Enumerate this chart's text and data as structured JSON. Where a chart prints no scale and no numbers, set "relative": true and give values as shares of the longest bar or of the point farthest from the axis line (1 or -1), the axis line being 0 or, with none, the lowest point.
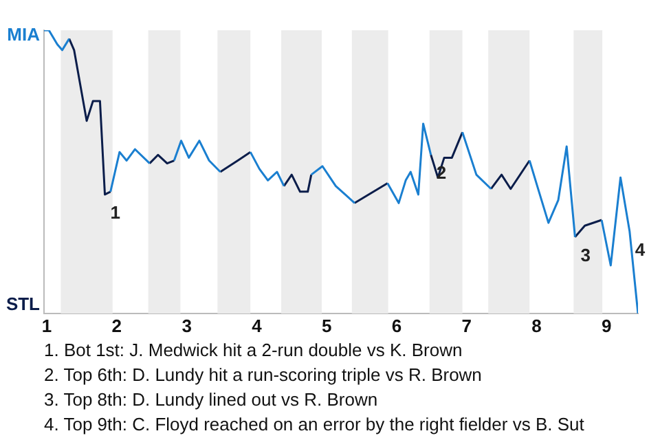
{
  "chart_data": {
    "type": "line",
    "relative": true,
    "x": [
      0.96,
      1.03,
      1.15,
      1.22,
      1.32,
      1.39,
      1.57,
      1.66,
      1.76,
      1.83,
      1.91,
      2.04,
      2.14,
      2.26,
      2.47,
      2.59,
      2.72,
      2.82,
      2.92,
      3.03,
      3.18,
      3.32,
      3.48,
      3.73,
      3.91,
      4.04,
      4.16,
      4.29,
      4.39,
      4.5,
      4.62,
      4.73,
      4.78,
      4.94,
      5.13,
      5.4,
      5.6,
      5.87,
      6.03,
      6.13,
      6.2,
      6.31,
      6.38,
      6.49,
      6.59,
      6.68,
      6.79,
      6.94,
      7.14,
      7.35,
      7.5,
      7.63,
      7.9,
      8.01,
      8.17,
      8.31,
      8.43,
      8.55,
      8.69,
      8.93,
      9.06,
      9.2,
      9.33,
      9.45
    ],
    "series": [
      {
        "color": "#1a7fd0",
        "values": [
          1,
          1,
          0.95,
          0.93,
          0.97,
          null,
          null,
          null,
          null,
          null,
          0.43,
          0.57,
          0.54,
          0.58,
          0.53,
          null,
          null,
          0.54,
          0.61,
          0.55,
          0.61,
          0.54,
          0.5,
          null,
          0.57,
          0.51,
          0.47,
          0.5,
          0.45,
          null,
          null,
          null,
          0.49,
          0.52,
          0.45,
          0.39,
          null,
          0.46,
          0.39,
          0.47,
          0.5,
          0.42,
          0.67,
          0.56,
          null,
          null,
          null,
          0.64,
          0.49,
          0.44,
          null,
          null,
          0.54,
          0.45,
          0.32,
          0.4,
          0.59,
          0.27,
          null,
          0.33,
          0.17,
          0.48,
          0.29,
          0
        ]
      },
      {
        "color": "#0b1d4a",
        "values": [
          null,
          null,
          null,
          null,
          0.97,
          0.93,
          0.68,
          0.75,
          0.75,
          0.42,
          0.43,
          null,
          null,
          null,
          0.53,
          0.56,
          0.53,
          0.54,
          null,
          null,
          null,
          null,
          0.5,
          0.54,
          0.57,
          null,
          null,
          null,
          0.45,
          0.49,
          0.43,
          0.43,
          0.49,
          null,
          null,
          0.39,
          0.42,
          0.46,
          null,
          null,
          null,
          null,
          null,
          0.56,
          0.48,
          0.55,
          0.55,
          0.64,
          null,
          0.44,
          0.49,
          0.44,
          0.54,
          null,
          null,
          null,
          null,
          0.27,
          0.31,
          0.33,
          null,
          null,
          null,
          null
        ]
      }
    ],
    "xlim": [
      0.96,
      9.45
    ],
    "xticks": [
      1,
      2,
      3,
      4,
      5,
      6,
      7,
      8,
      9
    ],
    "bands": [
      {
        "axis": "x",
        "from": 1.2,
        "to": 1.94,
        "color": "#ececec"
      },
      {
        "axis": "x",
        "from": 2.45,
        "to": 2.91,
        "color": "#ececec"
      },
      {
        "axis": "x",
        "from": 3.44,
        "to": 3.91,
        "color": "#ececec"
      },
      {
        "axis": "x",
        "from": 4.35,
        "to": 4.93,
        "color": "#ececec"
      },
      {
        "axis": "x",
        "from": 5.36,
        "to": 5.88,
        "color": "#ececec"
      },
      {
        "axis": "x",
        "from": 6.47,
        "to": 6.94,
        "color": "#ececec"
      },
      {
        "axis": "x",
        "from": 7.31,
        "to": 7.9,
        "color": "#ececec"
      },
      {
        "axis": "x",
        "from": 8.53,
        "to": 8.94,
        "color": "#ececec"
      }
    ],
    "annotations": [
      "MIA",
      "STL",
      {
        "text": "1",
        "x": 1.83,
        "y": 0.42
      },
      {
        "text": "2",
        "x": 6.49,
        "y": 0.56
      },
      {
        "text": "3",
        "x": 8.55,
        "y": 0.27
      },
      {
        "text": "4",
        "x": 9.33,
        "y": 0.29
      },
      "1. Bot 1st: J. Medwick hit a 2-run double vs K. Brown",
      "2. Top 6th: D. Lundy hit a run-scoring triple vs R. Brown",
      "3. Top 8th: D. Lundy lined out vs R. Brown",
      "4. Top 9th: C. Floyd reached on an error by the right fielder vs B. Sut"
    ],
    "legend": false,
    "marker": "none"
  }
}
